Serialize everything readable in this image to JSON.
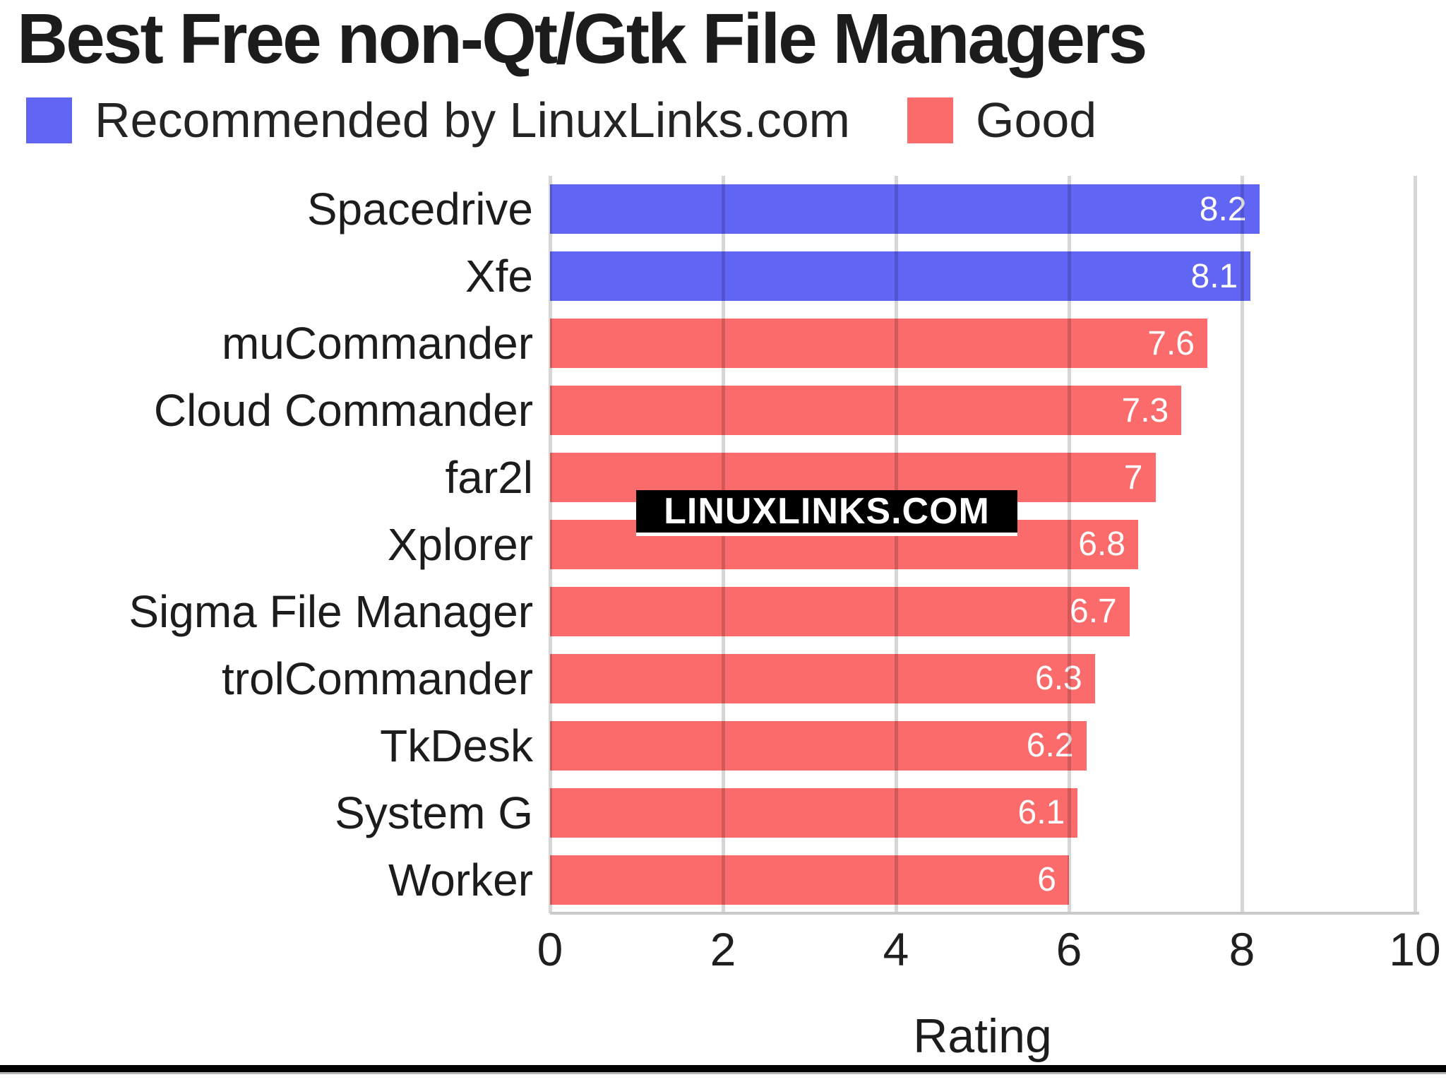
{
  "title": "Best Free non-Qt/Gtk File Managers",
  "legend": {
    "items": [
      {
        "key": "recommended",
        "label": "Recommended by LinuxLinks.com",
        "color": "#6165F4"
      },
      {
        "key": "good",
        "label": "Good",
        "color": "#FB6B6B"
      }
    ]
  },
  "watermark": {
    "text": "LINUXLINKS.COM",
    "bg": "#000000",
    "fg": "#ffffff"
  },
  "chart_data": {
    "type": "bar",
    "orientation": "horizontal",
    "title": "Best Free non-Qt/Gtk File Managers",
    "categories": [
      "Spacedrive",
      "Xfe",
      "muCommander",
      "Cloud Commander",
      "far2l",
      "Xplorer",
      "Sigma File Manager",
      "trolCommander",
      "TkDesk",
      "System G",
      "Worker"
    ],
    "values": [
      8.2,
      8.1,
      7.6,
      7.3,
      7,
      6.8,
      6.7,
      6.3,
      6.2,
      6.1,
      6
    ],
    "value_labels": [
      "8.2",
      "8.1",
      "7.6",
      "7.3",
      "7",
      "6.8",
      "6.7",
      "6.3",
      "6.2",
      "6.1",
      "6"
    ],
    "groups": [
      "recommended",
      "recommended",
      "good",
      "good",
      "good",
      "good",
      "good",
      "good",
      "good",
      "good",
      "good"
    ],
    "xlabel": "Rating",
    "xlim": [
      0,
      10
    ],
    "xticks": [
      0,
      2,
      4,
      6,
      8,
      10
    ],
    "grid": "vertical",
    "legend_position": "top",
    "bar_colors": {
      "recommended": "#6165F4",
      "good": "#FB6B6B"
    },
    "gridline_color": "rgba(0,0,0,0.16)"
  }
}
